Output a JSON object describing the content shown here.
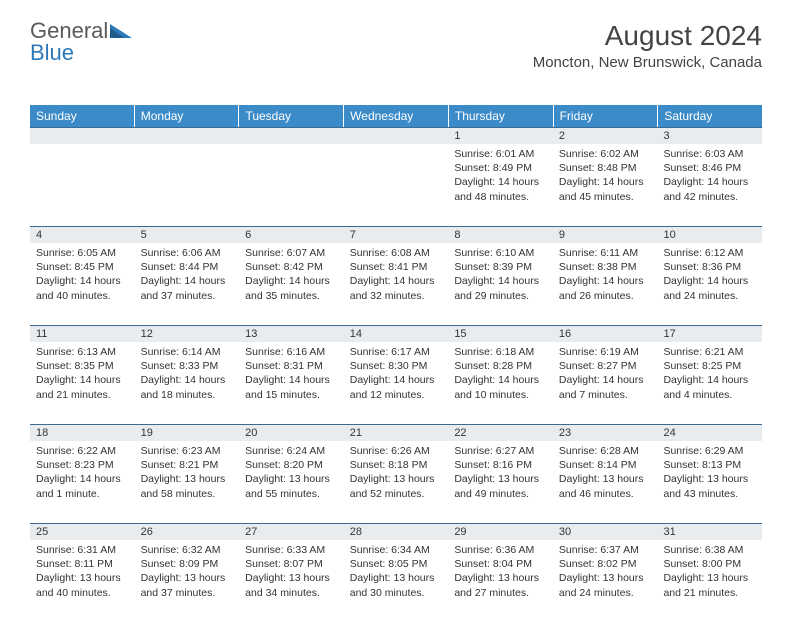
{
  "brand": {
    "part1": "General",
    "part2": "Blue",
    "logo_color": "#2e79b8"
  },
  "title": "August 2024",
  "location": "Moncton, New Brunswick, Canada",
  "colors": {
    "header_bg": "#3b8bc9",
    "row_border": "#3b6a93",
    "daynum_bg": "#e9ecef"
  },
  "day_names": [
    "Sunday",
    "Monday",
    "Tuesday",
    "Wednesday",
    "Thursday",
    "Friday",
    "Saturday"
  ],
  "weeks": [
    [
      {
        "n": "",
        "sr": "",
        "ss": "",
        "dl": ""
      },
      {
        "n": "",
        "sr": "",
        "ss": "",
        "dl": ""
      },
      {
        "n": "",
        "sr": "",
        "ss": "",
        "dl": ""
      },
      {
        "n": "",
        "sr": "",
        "ss": "",
        "dl": ""
      },
      {
        "n": "1",
        "sr": "Sunrise: 6:01 AM",
        "ss": "Sunset: 8:49 PM",
        "dl": "Daylight: 14 hours and 48 minutes."
      },
      {
        "n": "2",
        "sr": "Sunrise: 6:02 AM",
        "ss": "Sunset: 8:48 PM",
        "dl": "Daylight: 14 hours and 45 minutes."
      },
      {
        "n": "3",
        "sr": "Sunrise: 6:03 AM",
        "ss": "Sunset: 8:46 PM",
        "dl": "Daylight: 14 hours and 42 minutes."
      }
    ],
    [
      {
        "n": "4",
        "sr": "Sunrise: 6:05 AM",
        "ss": "Sunset: 8:45 PM",
        "dl": "Daylight: 14 hours and 40 minutes."
      },
      {
        "n": "5",
        "sr": "Sunrise: 6:06 AM",
        "ss": "Sunset: 8:44 PM",
        "dl": "Daylight: 14 hours and 37 minutes."
      },
      {
        "n": "6",
        "sr": "Sunrise: 6:07 AM",
        "ss": "Sunset: 8:42 PM",
        "dl": "Daylight: 14 hours and 35 minutes."
      },
      {
        "n": "7",
        "sr": "Sunrise: 6:08 AM",
        "ss": "Sunset: 8:41 PM",
        "dl": "Daylight: 14 hours and 32 minutes."
      },
      {
        "n": "8",
        "sr": "Sunrise: 6:10 AM",
        "ss": "Sunset: 8:39 PM",
        "dl": "Daylight: 14 hours and 29 minutes."
      },
      {
        "n": "9",
        "sr": "Sunrise: 6:11 AM",
        "ss": "Sunset: 8:38 PM",
        "dl": "Daylight: 14 hours and 26 minutes."
      },
      {
        "n": "10",
        "sr": "Sunrise: 6:12 AM",
        "ss": "Sunset: 8:36 PM",
        "dl": "Daylight: 14 hours and 24 minutes."
      }
    ],
    [
      {
        "n": "11",
        "sr": "Sunrise: 6:13 AM",
        "ss": "Sunset: 8:35 PM",
        "dl": "Daylight: 14 hours and 21 minutes."
      },
      {
        "n": "12",
        "sr": "Sunrise: 6:14 AM",
        "ss": "Sunset: 8:33 PM",
        "dl": "Daylight: 14 hours and 18 minutes."
      },
      {
        "n": "13",
        "sr": "Sunrise: 6:16 AM",
        "ss": "Sunset: 8:31 PM",
        "dl": "Daylight: 14 hours and 15 minutes."
      },
      {
        "n": "14",
        "sr": "Sunrise: 6:17 AM",
        "ss": "Sunset: 8:30 PM",
        "dl": "Daylight: 14 hours and 12 minutes."
      },
      {
        "n": "15",
        "sr": "Sunrise: 6:18 AM",
        "ss": "Sunset: 8:28 PM",
        "dl": "Daylight: 14 hours and 10 minutes."
      },
      {
        "n": "16",
        "sr": "Sunrise: 6:19 AM",
        "ss": "Sunset: 8:27 PM",
        "dl": "Daylight: 14 hours and 7 minutes."
      },
      {
        "n": "17",
        "sr": "Sunrise: 6:21 AM",
        "ss": "Sunset: 8:25 PM",
        "dl": "Daylight: 14 hours and 4 minutes."
      }
    ],
    [
      {
        "n": "18",
        "sr": "Sunrise: 6:22 AM",
        "ss": "Sunset: 8:23 PM",
        "dl": "Daylight: 14 hours and 1 minute."
      },
      {
        "n": "19",
        "sr": "Sunrise: 6:23 AM",
        "ss": "Sunset: 8:21 PM",
        "dl": "Daylight: 13 hours and 58 minutes."
      },
      {
        "n": "20",
        "sr": "Sunrise: 6:24 AM",
        "ss": "Sunset: 8:20 PM",
        "dl": "Daylight: 13 hours and 55 minutes."
      },
      {
        "n": "21",
        "sr": "Sunrise: 6:26 AM",
        "ss": "Sunset: 8:18 PM",
        "dl": "Daylight: 13 hours and 52 minutes."
      },
      {
        "n": "22",
        "sr": "Sunrise: 6:27 AM",
        "ss": "Sunset: 8:16 PM",
        "dl": "Daylight: 13 hours and 49 minutes."
      },
      {
        "n": "23",
        "sr": "Sunrise: 6:28 AM",
        "ss": "Sunset: 8:14 PM",
        "dl": "Daylight: 13 hours and 46 minutes."
      },
      {
        "n": "24",
        "sr": "Sunrise: 6:29 AM",
        "ss": "Sunset: 8:13 PM",
        "dl": "Daylight: 13 hours and 43 minutes."
      }
    ],
    [
      {
        "n": "25",
        "sr": "Sunrise: 6:31 AM",
        "ss": "Sunset: 8:11 PM",
        "dl": "Daylight: 13 hours and 40 minutes."
      },
      {
        "n": "26",
        "sr": "Sunrise: 6:32 AM",
        "ss": "Sunset: 8:09 PM",
        "dl": "Daylight: 13 hours and 37 minutes."
      },
      {
        "n": "27",
        "sr": "Sunrise: 6:33 AM",
        "ss": "Sunset: 8:07 PM",
        "dl": "Daylight: 13 hours and 34 minutes."
      },
      {
        "n": "28",
        "sr": "Sunrise: 6:34 AM",
        "ss": "Sunset: 8:05 PM",
        "dl": "Daylight: 13 hours and 30 minutes."
      },
      {
        "n": "29",
        "sr": "Sunrise: 6:36 AM",
        "ss": "Sunset: 8:04 PM",
        "dl": "Daylight: 13 hours and 27 minutes."
      },
      {
        "n": "30",
        "sr": "Sunrise: 6:37 AM",
        "ss": "Sunset: 8:02 PM",
        "dl": "Daylight: 13 hours and 24 minutes."
      },
      {
        "n": "31",
        "sr": "Sunrise: 6:38 AM",
        "ss": "Sunset: 8:00 PM",
        "dl": "Daylight: 13 hours and 21 minutes."
      }
    ]
  ]
}
